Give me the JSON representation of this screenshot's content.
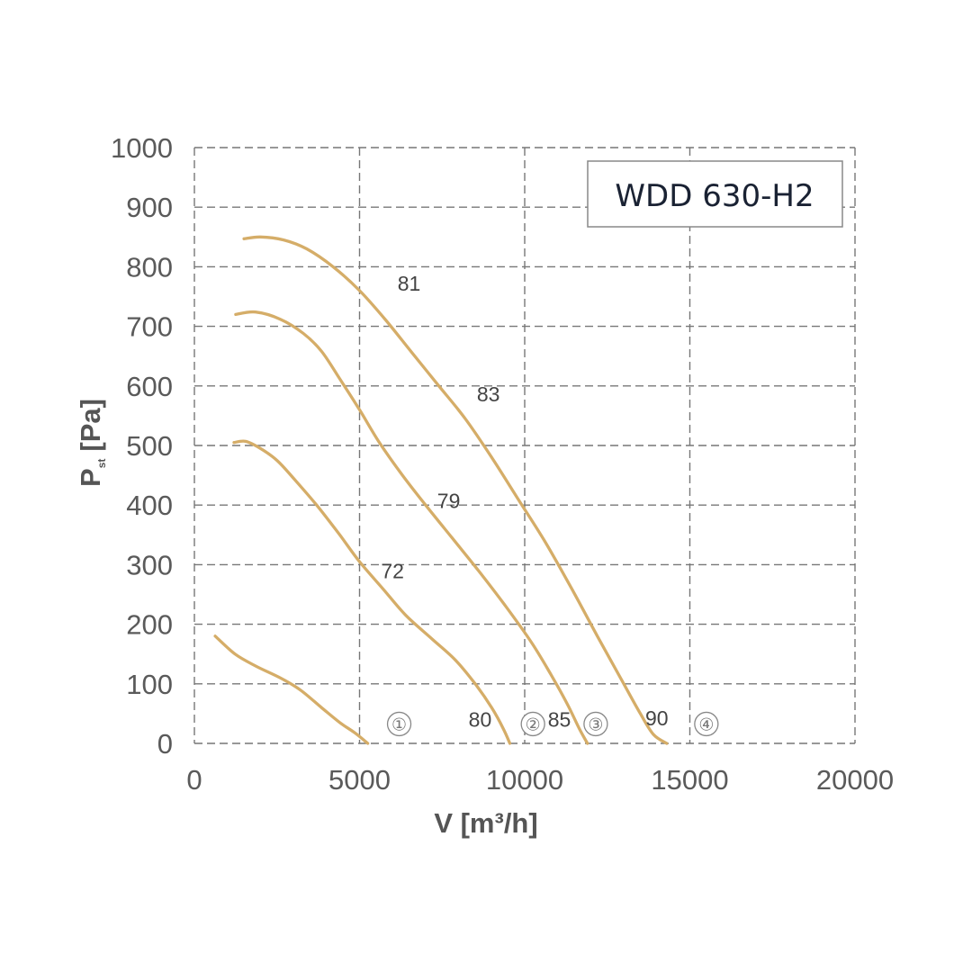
{
  "chart_data": {
    "type": "line",
    "title": "WDD 630-H2",
    "xlabel": "V [m³/h]",
    "ylabel": "P",
    "ylabel_sub": "st",
    "ylabel_unit": "[Pa]",
    "xlim": [
      0,
      20000
    ],
    "ylim": [
      0,
      1000
    ],
    "xticks": [
      0,
      5000,
      10000,
      15000,
      20000
    ],
    "yticks": [
      0,
      100,
      200,
      300,
      400,
      500,
      600,
      700,
      800,
      900,
      1000
    ],
    "grid": true,
    "series": [
      {
        "name": "1",
        "values": [
          [
            630,
            180
          ],
          [
            1230,
            150
          ],
          [
            1850,
            130
          ],
          [
            2600,
            110
          ],
          [
            3200,
            90
          ],
          [
            3850,
            60
          ],
          [
            4400,
            35
          ],
          [
            4850,
            18
          ],
          [
            5250,
            0
          ]
        ]
      },
      {
        "name": "2",
        "values": [
          [
            1200,
            505
          ],
          [
            1550,
            507
          ],
          [
            2000,
            495
          ],
          [
            2500,
            475
          ],
          [
            3000,
            445
          ],
          [
            3700,
            400
          ],
          [
            4400,
            350
          ],
          [
            5000,
            305
          ],
          [
            5700,
            260
          ],
          [
            6400,
            215
          ],
          [
            7200,
            175
          ],
          [
            7900,
            140
          ],
          [
            8500,
            100
          ],
          [
            9000,
            60
          ],
          [
            9350,
            25
          ],
          [
            9550,
            0
          ]
        ]
      },
      {
        "name": "3",
        "values": [
          [
            1250,
            720
          ],
          [
            1850,
            724
          ],
          [
            2600,
            712
          ],
          [
            3300,
            688
          ],
          [
            3850,
            658
          ],
          [
            4400,
            612
          ],
          [
            5000,
            560
          ],
          [
            5600,
            505
          ],
          [
            6300,
            450
          ],
          [
            7000,
            400
          ],
          [
            7800,
            345
          ],
          [
            8600,
            290
          ],
          [
            9400,
            232
          ],
          [
            10200,
            170
          ],
          [
            10800,
            115
          ],
          [
            11300,
            65
          ],
          [
            11650,
            25
          ],
          [
            11900,
            0
          ]
        ]
      },
      {
        "name": "4",
        "values": [
          [
            1500,
            847
          ],
          [
            2000,
            850
          ],
          [
            2700,
            845
          ],
          [
            3400,
            830
          ],
          [
            4200,
            800
          ],
          [
            5000,
            760
          ],
          [
            5800,
            710
          ],
          [
            6600,
            655
          ],
          [
            7400,
            600
          ],
          [
            8200,
            545
          ],
          [
            9000,
            480
          ],
          [
            9800,
            410
          ],
          [
            10600,
            340
          ],
          [
            11400,
            262
          ],
          [
            12200,
            180
          ],
          [
            12900,
            110
          ],
          [
            13500,
            50
          ],
          [
            13900,
            15
          ],
          [
            14300,
            0
          ]
        ]
      }
    ],
    "annotations": [
      {
        "text": "81",
        "x": 6500,
        "y": 760
      },
      {
        "text": "83",
        "x": 8900,
        "y": 574
      },
      {
        "text": "79",
        "x": 7700,
        "y": 395
      },
      {
        "text": "72",
        "x": 6000,
        "y": 277
      },
      {
        "text": "80",
        "x": 8650,
        "y": 28
      },
      {
        "text": "85",
        "x": 11050,
        "y": 28
      },
      {
        "text": "90",
        "x": 14000,
        "y": 30
      }
    ],
    "curve_numbers": [
      {
        "text": "①",
        "x": 6200,
        "y": 22
      },
      {
        "text": "②",
        "x": 10250,
        "y": 22
      },
      {
        "text": "③",
        "x": 12150,
        "y": 22
      },
      {
        "text": "④",
        "x": 15500,
        "y": 22
      }
    ],
    "colors": {
      "curve": "#d5ad68",
      "grid": "#777777",
      "text": "#5a5a5a",
      "model_box_border": "#888888"
    }
  }
}
